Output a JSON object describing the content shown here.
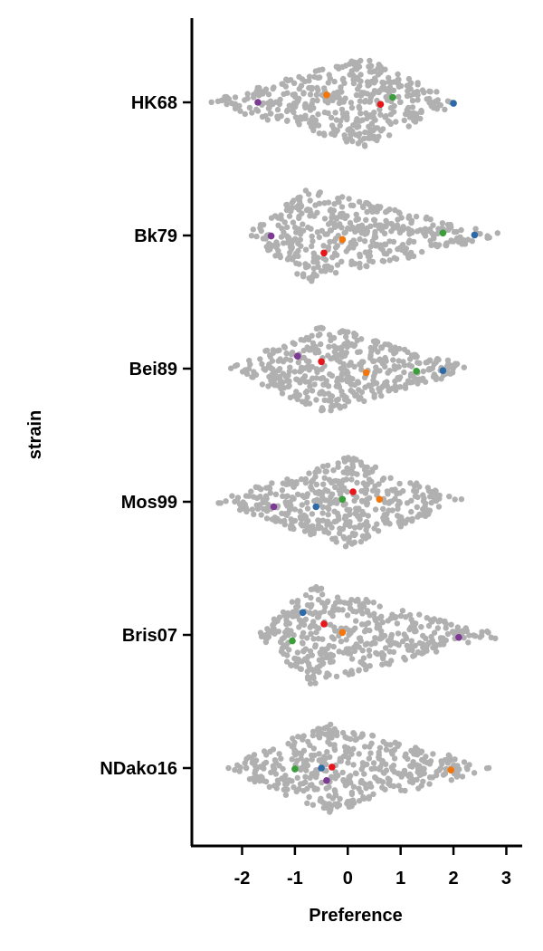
{
  "chart_data": {
    "type": "scatter",
    "subtype": "swarm",
    "title": "",
    "xlabel": "Preference",
    "ylabel": "strain",
    "xlim": [
      -2.95,
      3.3
    ],
    "xticks": [
      -2,
      -1,
      0,
      1,
      2,
      3
    ],
    "xtick_labels": [
      "-2",
      "-1",
      "0",
      "1",
      "2",
      "3"
    ],
    "categories": [
      "HK68",
      "Bk79",
      "Bei89",
      "Mos99",
      "Bris07",
      "NDako16"
    ],
    "grid": false,
    "legend": "none",
    "background_color": "#b0b0b0",
    "distributions": [
      {
        "strain": "HK68",
        "min": -2.75,
        "max": 2.15,
        "peak": 0.3,
        "halfwidth": [
          -2.75,
          2.15
        ],
        "spread": 0.75,
        "n": 420
      },
      {
        "strain": "Bk79",
        "min": -1.95,
        "max": 2.95,
        "peak": -0.75,
        "halfwidth": [
          -1.95,
          2.95
        ],
        "spread": 0.85,
        "n": 420
      },
      {
        "strain": "Bei89",
        "min": -2.25,
        "max": 2.45,
        "peak": -0.5,
        "halfwidth": [
          -2.25,
          2.45
        ],
        "spread": 0.75,
        "n": 420
      },
      {
        "strain": "Mos99",
        "min": -2.6,
        "max": 2.2,
        "peak": 0.0,
        "halfwidth": [
          -2.6,
          2.2
        ],
        "spread": 0.8,
        "n": 420
      },
      {
        "strain": "Bris07",
        "min": -1.75,
        "max": 2.9,
        "peak": -0.7,
        "halfwidth": [
          -1.75,
          2.9
        ],
        "spread": 1.0,
        "n": 420
      },
      {
        "strain": "NDako16",
        "min": -2.35,
        "max": 2.85,
        "peak": -0.4,
        "halfwidth": [
          -2.35,
          2.85
        ],
        "spread": 0.75,
        "n": 420
      }
    ],
    "series": [
      {
        "color": "#e6161a",
        "points": [
          {
            "strain": "HK68",
            "x": 0.62,
            "offset": 0.04
          },
          {
            "strain": "Bk79",
            "x": -0.45,
            "offset": 0.35
          },
          {
            "strain": "Bei89",
            "x": -0.5,
            "offset": -0.14
          },
          {
            "strain": "Mos99",
            "x": 0.1,
            "offset": -0.2
          },
          {
            "strain": "Bris07",
            "x": -0.45,
            "offset": -0.22
          },
          {
            "strain": "NDako16",
            "x": -0.3,
            "offset": -0.02
          }
        ]
      },
      {
        "color": "#3a9e3a",
        "points": [
          {
            "strain": "HK68",
            "x": 0.85,
            "offset": -0.1
          },
          {
            "strain": "Bk79",
            "x": 1.8,
            "offset": -0.05
          },
          {
            "strain": "Bei89",
            "x": 1.3,
            "offset": 0.05
          },
          {
            "strain": "Mos99",
            "x": -0.1,
            "offset": -0.05
          },
          {
            "strain": "Bris07",
            "x": -1.05,
            "offset": 0.12
          },
          {
            "strain": "NDako16",
            "x": -1.0,
            "offset": 0.02
          }
        ]
      },
      {
        "color": "#f2760b",
        "points": [
          {
            "strain": "HK68",
            "x": -0.4,
            "offset": -0.15
          },
          {
            "strain": "Bk79",
            "x": -0.1,
            "offset": 0.08
          },
          {
            "strain": "Bei89",
            "x": 0.35,
            "offset": 0.08
          },
          {
            "strain": "Mos99",
            "x": 0.6,
            "offset": -0.05
          },
          {
            "strain": "Bris07",
            "x": -0.1,
            "offset": -0.05
          },
          {
            "strain": "NDako16",
            "x": 1.95,
            "offset": 0.04
          }
        ]
      },
      {
        "color": "#2d6aa8",
        "points": [
          {
            "strain": "HK68",
            "x": 2.0,
            "offset": 0.02
          },
          {
            "strain": "Bk79",
            "x": 2.4,
            "offset": -0.01
          },
          {
            "strain": "Bei89",
            "x": 1.8,
            "offset": 0.04
          },
          {
            "strain": "Mos99",
            "x": -0.6,
            "offset": 0.1
          },
          {
            "strain": "Bris07",
            "x": -0.85,
            "offset": -0.45
          },
          {
            "strain": "NDako16",
            "x": -0.5,
            "offset": 0.0
          }
        ]
      },
      {
        "color": "#7d3a94",
        "points": [
          {
            "strain": "HK68",
            "x": -1.7,
            "offset": 0.0
          },
          {
            "strain": "Bk79",
            "x": -1.45,
            "offset": 0.01
          },
          {
            "strain": "Bei89",
            "x": -0.95,
            "offset": -0.25
          },
          {
            "strain": "Mos99",
            "x": -1.4,
            "offset": 0.1
          },
          {
            "strain": "Bris07",
            "x": 2.1,
            "offset": 0.05
          },
          {
            "strain": "NDako16",
            "x": -0.4,
            "offset": 0.25
          }
        ]
      }
    ]
  }
}
